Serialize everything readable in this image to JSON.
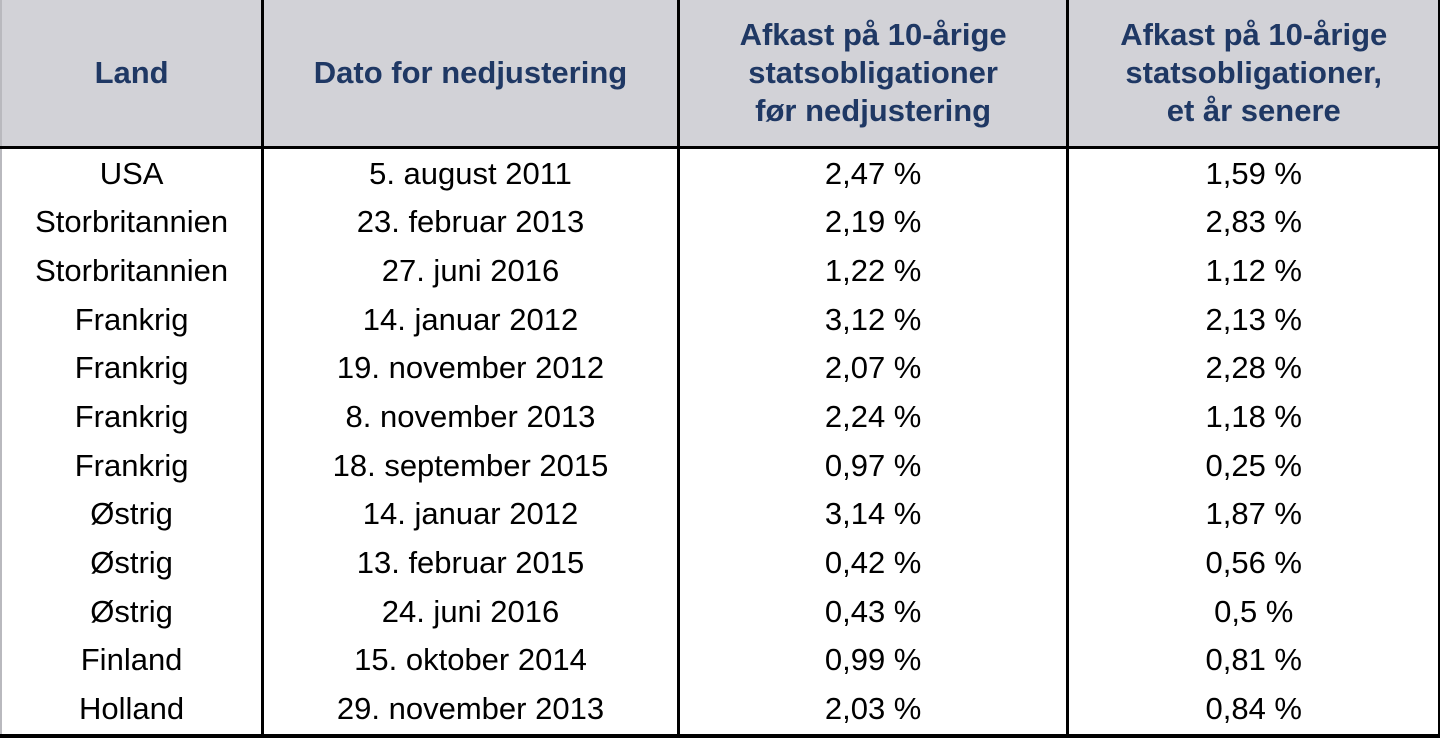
{
  "colors": {
    "header_bg": "#d2d2d7",
    "header_text": "#1f3864",
    "body_text": "#000000",
    "border": "#000000"
  },
  "chart_data": {
    "type": "table",
    "title": "",
    "columns": [
      "Land",
      "Dato for nedjustering",
      "Afkast på 10-årige\nstatsobligationer\nfør nedjustering",
      "Afkast på 10-årige\nstatsobligationer,\net år senere"
    ],
    "columns_plain": [
      "Land",
      "Dato for nedjustering",
      "Afkast på 10-årige statsobligationer før nedjustering",
      "Afkast på 10-årige statsobligationer, et år senere"
    ],
    "rows": [
      [
        "USA",
        "5. august 2011",
        "2,47 %",
        "1,59 %"
      ],
      [
        "Storbritannien",
        "23. februar 2013",
        "2,19 %",
        "2,83 %"
      ],
      [
        "Storbritannien",
        "27. juni 2016",
        "1,22 %",
        "1,12 %"
      ],
      [
        "Frankrig",
        "14. januar 2012",
        "3,12 %",
        "2,13 %"
      ],
      [
        "Frankrig",
        "19. november 2012",
        "2,07 %",
        "2,28 %"
      ],
      [
        "Frankrig",
        "8. november 2013",
        "2,24 %",
        "1,18 %"
      ],
      [
        "Frankrig",
        "18. september 2015",
        "0,97 %",
        "0,25 %"
      ],
      [
        "Østrig",
        "14. januar 2012",
        "3,14 %",
        "1,87 %"
      ],
      [
        "Østrig",
        "13. februar 2015",
        "0,42 %",
        "0,56 %"
      ],
      [
        "Østrig",
        "24. juni 2016",
        "0,43 %",
        "0,5 %"
      ],
      [
        "Finland",
        "15. oktober 2014",
        "0,99 %",
        "0,81 %"
      ],
      [
        "Holland",
        "29. november 2013",
        "2,03 %",
        "0,84 %"
      ]
    ],
    "yields_before_downgrade_pct": [
      2.47,
      2.19,
      1.22,
      3.12,
      2.07,
      2.24,
      0.97,
      3.14,
      0.42,
      0.43,
      0.99,
      2.03
    ],
    "yields_one_year_later_pct": [
      1.59,
      2.83,
      1.12,
      2.13,
      2.28,
      1.18,
      0.25,
      1.87,
      0.56,
      0.5,
      0.81,
      0.84
    ]
  }
}
